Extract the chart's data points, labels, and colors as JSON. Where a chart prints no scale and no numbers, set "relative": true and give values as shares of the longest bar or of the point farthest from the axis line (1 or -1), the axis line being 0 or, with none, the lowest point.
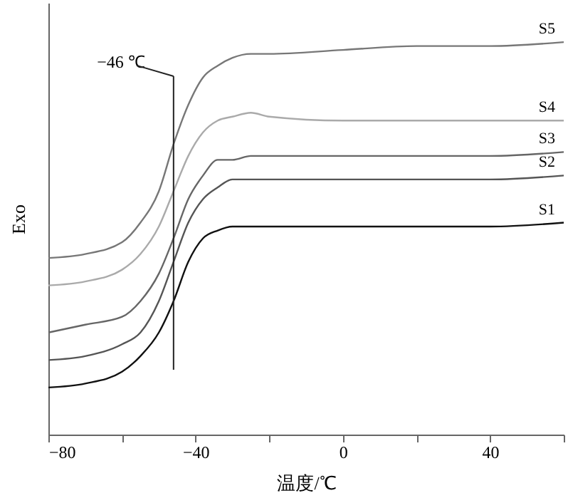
{
  "chart_data": {
    "type": "line",
    "relative": true,
    "xlabel": "温度/℃",
    "ylabel": "Exo",
    "legend": false,
    "grid": false,
    "tick_labels": "x",
    "line_style": "solid",
    "marker": "none",
    "x": [
      -80,
      -70,
      -60,
      -55,
      -50,
      -46,
      -42,
      -38,
      -34,
      -30,
      -25,
      -20,
      0,
      20,
      40,
      60
    ],
    "xlim": [
      -80,
      60
    ],
    "xticks": [
      -80,
      {
        "value": -60,
        "label": null
      },
      -40,
      {
        "value": -20,
        "label": null
      },
      0,
      {
        "value": 20,
        "label": null
      },
      40,
      {
        "value": 60,
        "label": null
      }
    ],
    "series": [
      {
        "name": "S1",
        "color": "#111111",
        "values": [
          0.12,
          0.13,
          0.16,
          0.2,
          0.26,
          0.34,
          0.44,
          0.5,
          0.52,
          0.53,
          0.53,
          0.53,
          0.53,
          0.53,
          0.53,
          0.54
        ]
      },
      {
        "name": "S2",
        "color": "#555555",
        "values": [
          0.19,
          0.2,
          0.23,
          0.26,
          0.34,
          0.44,
          0.54,
          0.6,
          0.63,
          0.65,
          0.65,
          0.65,
          0.65,
          0.65,
          0.65,
          0.66
        ]
      },
      {
        "name": "S3",
        "color": "#666666",
        "values": [
          0.26,
          0.28,
          0.3,
          0.34,
          0.41,
          0.5,
          0.6,
          0.66,
          0.7,
          0.7,
          0.71,
          0.71,
          0.71,
          0.71,
          0.71,
          0.72
        ]
      },
      {
        "name": "S4",
        "color": "#aaaaaa",
        "values": [
          0.38,
          0.39,
          0.42,
          0.46,
          0.53,
          0.62,
          0.71,
          0.77,
          0.8,
          0.81,
          0.82,
          0.81,
          0.8,
          0.8,
          0.8,
          0.8
        ]
      },
      {
        "name": "S5",
        "color": "#777777",
        "values": [
          0.45,
          0.46,
          0.49,
          0.54,
          0.62,
          0.74,
          0.84,
          0.91,
          0.94,
          0.96,
          0.97,
          0.97,
          0.98,
          0.99,
          0.99,
          1.0
        ]
      }
    ],
    "ref_lines": [
      {
        "axis": "x",
        "value": -46,
        "label": "−46 ℃",
        "color": "#222222",
        "line_style": "solid"
      }
    ]
  }
}
